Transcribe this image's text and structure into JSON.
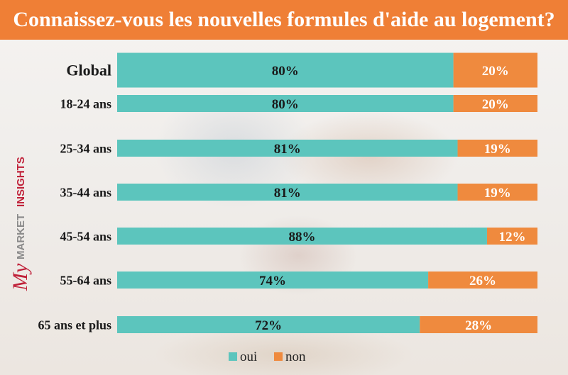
{
  "title": "Connaissez-vous les nouvelles formules d'aide au logement?",
  "brand": {
    "prefix": "My",
    "word1": "MARKET",
    "word2": "INSIGHTS"
  },
  "colors": {
    "title_band": "#ef7f36",
    "oui": "#5cc5bd",
    "non": "#ef8a3e"
  },
  "legend": {
    "position": "bottom-center",
    "items": [
      "oui",
      "non"
    ]
  },
  "chart_data": {
    "type": "bar",
    "orientation": "horizontal",
    "stacked": true,
    "unit": "%",
    "categories": [
      "Global",
      "18-24 ans",
      "25-34 ans",
      "35-44 ans",
      "45-54 ans",
      "55-64 ans",
      "65 ans et plus"
    ],
    "series": [
      {
        "name": "oui",
        "values": [
          80,
          80,
          81,
          81,
          88,
          74,
          72
        ]
      },
      {
        "name": "non",
        "values": [
          20,
          20,
          19,
          19,
          12,
          26,
          28
        ]
      }
    ],
    "data_labels": [
      [
        "80%",
        "80%",
        "81%",
        "81%",
        "88%",
        "74%",
        "72%"
      ],
      [
        "20%",
        "20%",
        "19%",
        "19%",
        "12%",
        "26%",
        "28%"
      ]
    ],
    "xlim": [
      0,
      100
    ],
    "grid": false
  }
}
